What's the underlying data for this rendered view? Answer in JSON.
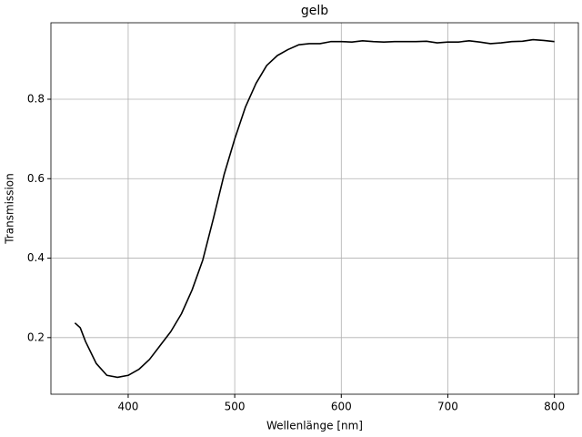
{
  "chart_data": {
    "type": "line",
    "title": "gelb",
    "x_label": "Wellenlänge [nm]",
    "y_label": "Transmission",
    "x": [
      350,
      355,
      360,
      370,
      380,
      390,
      400,
      410,
      420,
      430,
      440,
      450,
      460,
      470,
      480,
      490,
      500,
      510,
      520,
      530,
      540,
      550,
      560,
      570,
      580,
      590,
      600,
      610,
      620,
      630,
      640,
      650,
      660,
      670,
      680,
      690,
      700,
      710,
      720,
      730,
      740,
      750,
      760,
      770,
      780,
      790,
      800
    ],
    "series": [
      {
        "name": "gelb",
        "color": "#000000",
        "values": [
          0.237,
          0.225,
          0.19,
          0.135,
          0.105,
          0.1,
          0.105,
          0.12,
          0.145,
          0.18,
          0.215,
          0.26,
          0.32,
          0.395,
          0.5,
          0.61,
          0.7,
          0.78,
          0.84,
          0.885,
          0.91,
          0.925,
          0.937,
          0.94,
          0.94,
          0.945,
          0.945,
          0.944,
          0.947,
          0.945,
          0.944,
          0.945,
          0.945,
          0.945,
          0.946,
          0.942,
          0.944,
          0.944,
          0.947,
          0.944,
          0.94,
          0.942,
          0.945,
          0.946,
          0.95,
          0.948,
          0.945
        ]
      }
    ],
    "xlim": [
      327.5,
      822.5
    ],
    "ylim": [
      0.0575,
      0.9925
    ],
    "xticks": [
      400,
      500,
      600,
      700,
      800
    ],
    "yticks": [
      0.2,
      0.4,
      0.6,
      0.8
    ],
    "grid": true
  }
}
